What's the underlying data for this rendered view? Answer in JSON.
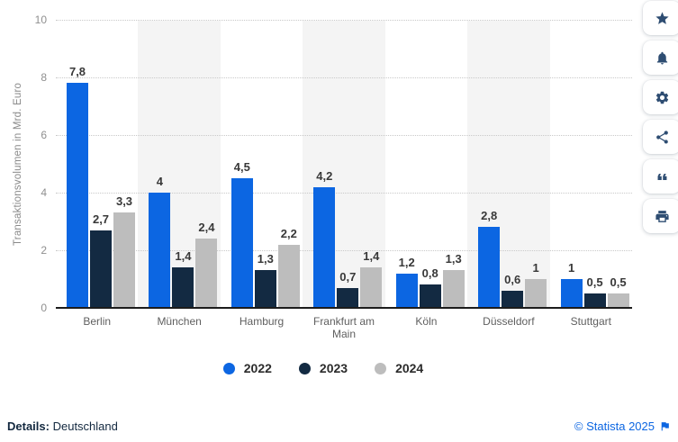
{
  "chart_data": {
    "type": "bar",
    "title": "",
    "ylabel": "Transaktionsvolumen in Mrd. Euro",
    "ylim": [
      0,
      10
    ],
    "yticks": [
      0,
      2,
      4,
      6,
      8,
      10
    ],
    "grid": "horizontal-dotted",
    "legend_position": "bottom",
    "categories": [
      "Berlin",
      "München",
      "Hamburg",
      "Frankfurt am Main",
      "Köln",
      "Düsseldorf",
      "Stuttgart"
    ],
    "series": [
      {
        "name": "2022",
        "color": "#0c66e2",
        "values": [
          7.8,
          4,
          4.5,
          4.2,
          1.2,
          2.8,
          1
        ],
        "labels": [
          "7,8",
          "4",
          "4,5",
          "4,2",
          "1,2",
          "2,8",
          "1"
        ]
      },
      {
        "name": "2023",
        "color": "#132a42",
        "values": [
          2.7,
          1.4,
          1.3,
          0.7,
          0.8,
          0.6,
          0.5
        ],
        "labels": [
          "2,7",
          "1,4",
          "1,3",
          "0,7",
          "0,8",
          "0,6",
          "0,5"
        ]
      },
      {
        "name": "2024",
        "color": "#bdbdbd",
        "values": [
          3.3,
          2.4,
          2.2,
          1.4,
          1.3,
          1,
          0.5
        ],
        "labels": [
          "3,3",
          "2,4",
          "2,2",
          "1,4",
          "1,3",
          "1",
          "0,5"
        ]
      }
    ]
  },
  "toolbar": {
    "buttons": [
      {
        "name": "favorite",
        "icon": "star-icon"
      },
      {
        "name": "notifications",
        "icon": "bell-icon"
      },
      {
        "name": "settings",
        "icon": "gear-icon"
      },
      {
        "name": "share",
        "icon": "share-icon"
      },
      {
        "name": "cite",
        "icon": "quote-icon"
      },
      {
        "name": "print",
        "icon": "print-icon"
      }
    ]
  },
  "footer": {
    "details_label": "Details:",
    "details_value": "Deutschland",
    "attribution": "© Statista 2025"
  },
  "colors": {
    "accent_blue": "#0c66e2",
    "dark_navy": "#132a42",
    "series_gray": "#bdbdbd",
    "icon_navy": "#2e4d72",
    "band_gray": "#f4f4f4"
  }
}
